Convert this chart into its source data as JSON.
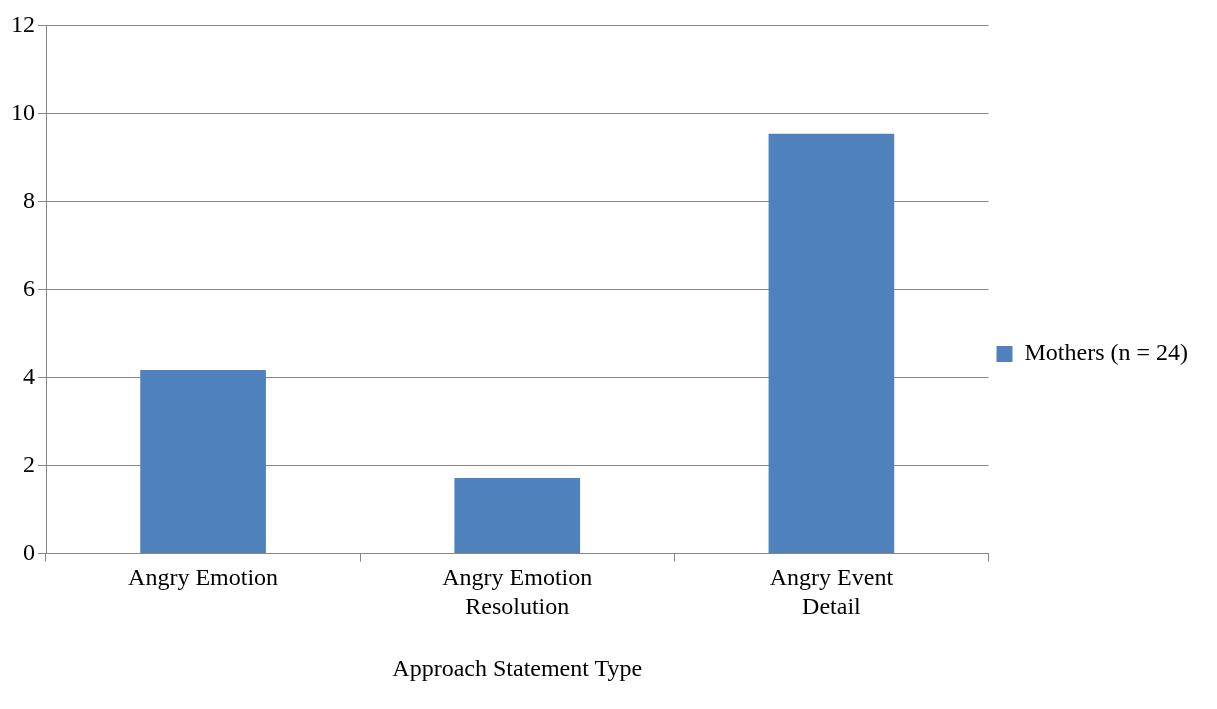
{
  "chart_data": {
    "type": "bar",
    "xlabel": "Approach Statement Type",
    "categories": [
      "Angry Emotion",
      "Angry Emotion Resolution",
      "Angry Event Detail"
    ],
    "series": [
      {
        "name": "Mothers (n = 24)",
        "color": "#4f81bd",
        "values": [
          4.17,
          1.72,
          9.54
        ]
      }
    ],
    "ylim": [
      0,
      12
    ],
    "yticks": [
      0,
      2,
      4,
      6,
      8,
      10,
      12
    ],
    "grid": "y",
    "legend": "right"
  }
}
